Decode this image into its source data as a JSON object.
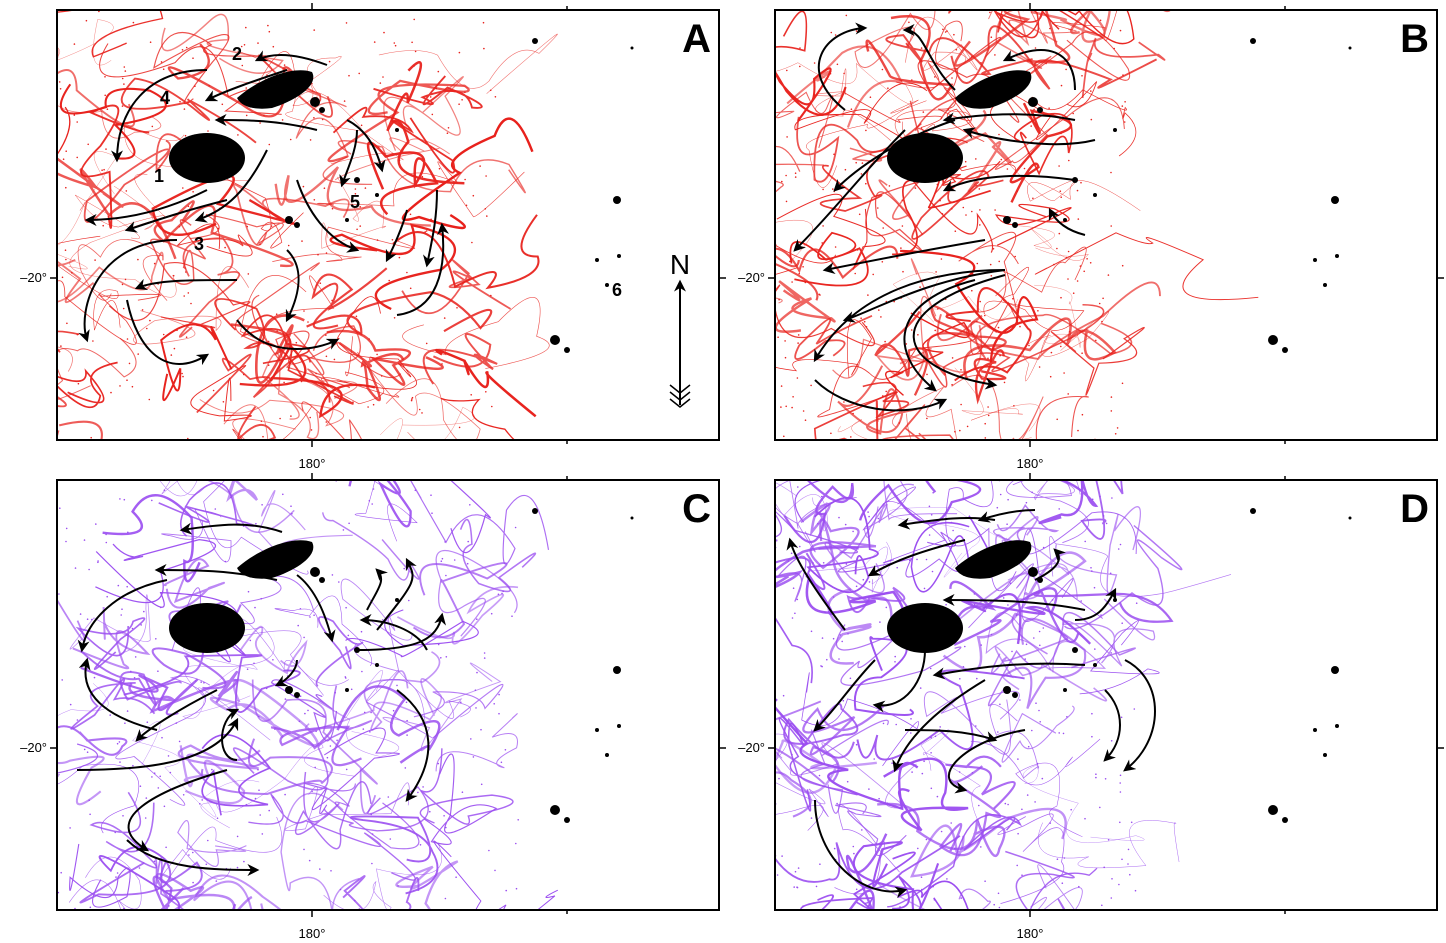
{
  "panels": [
    {
      "letter": "A",
      "x_label": "180°",
      "y_label": "–20°",
      "annotations": [
        "1",
        "2",
        "3",
        "4",
        "5",
        "6"
      ]
    },
    {
      "letter": "B",
      "x_label": "180°",
      "y_label": "–20°",
      "annotations": []
    },
    {
      "letter": "C",
      "x_label": "180°",
      "y_label": "–20°",
      "annotations": []
    },
    {
      "letter": "D",
      "x_label": "180°",
      "y_label": "–20°",
      "annotations": []
    }
  ],
  "compass": "N"
}
